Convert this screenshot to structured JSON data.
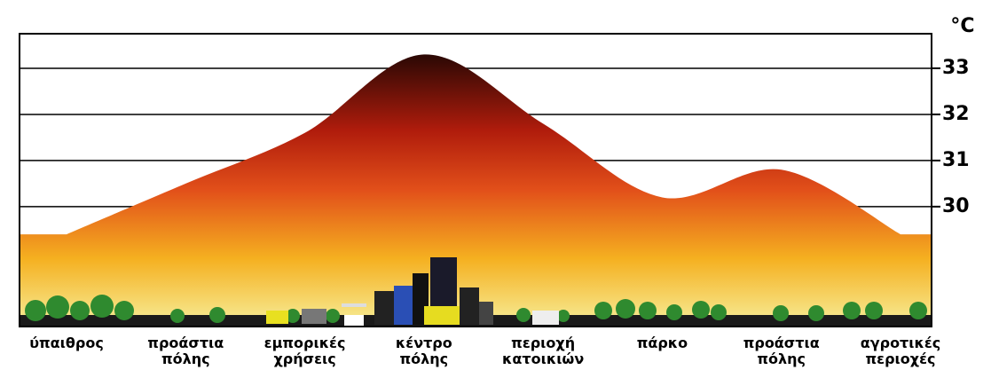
{
  "chart_data": {
    "type": "area",
    "unit": "°C",
    "categories": [
      "ύπαιθρος",
      "προάστια\nπόλης",
      "εμπορικές\nχρήσεις",
      "κέντρο\nπόλης",
      "περιοχή\nκατοικιών",
      "πάρκο",
      "προάστια\nπόλης",
      "αγροτικές\nπεριοχές"
    ],
    "values": [
      29.4,
      30.5,
      31.6,
      33.3,
      31.8,
      30.2,
      30.8,
      29.4
    ],
    "ylim": [
      27.4,
      33.75
    ],
    "yticks": [
      30,
      31,
      32,
      33
    ],
    "grid": true
  }
}
